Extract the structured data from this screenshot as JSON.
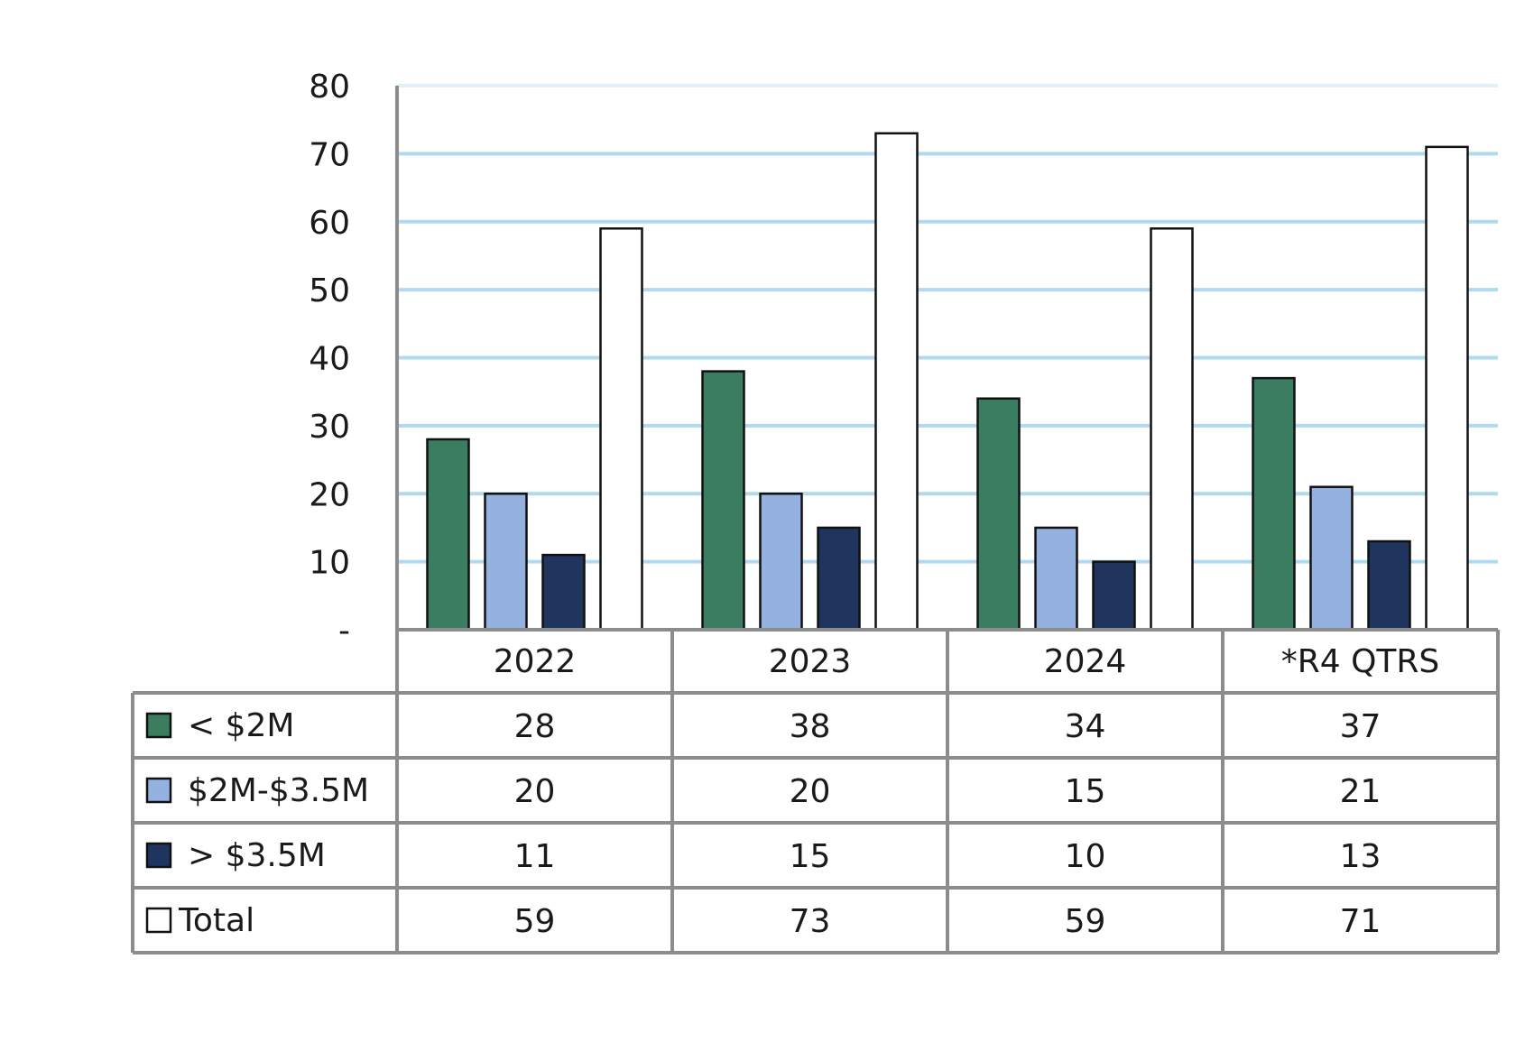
{
  "chart_data": {
    "type": "bar",
    "title": "",
    "xlabel": "",
    "ylabel": "",
    "categories": [
      "2022",
      "2023",
      "2024",
      "*R4 QTRS"
    ],
    "ylim": [
      0,
      80
    ],
    "y_ticks": [
      {
        "value": 0,
        "label": "-"
      },
      {
        "value": 10,
        "label": "10"
      },
      {
        "value": 20,
        "label": "20"
      },
      {
        "value": 30,
        "label": "30"
      },
      {
        "value": 40,
        "label": "40"
      },
      {
        "value": 50,
        "label": "50"
      },
      {
        "value": 60,
        "label": "60"
      },
      {
        "value": 70,
        "label": "70"
      },
      {
        "value": 80,
        "label": "80"
      }
    ],
    "grid": true,
    "legend": "data-table",
    "series": [
      {
        "name": "< $2M",
        "color": "#3a7d60",
        "values": [
          28,
          38,
          34,
          37
        ]
      },
      {
        "name": "$2M-$3.5M",
        "color": "#95b1df",
        "values": [
          20,
          20,
          15,
          21
        ]
      },
      {
        "name": "> $3.5M",
        "color": "#20355e",
        "values": [
          11,
          15,
          10,
          13
        ]
      },
      {
        "name": "Total",
        "color": "#ffffff",
        "values": [
          59,
          73,
          59,
          71
        ]
      }
    ]
  },
  "colors": {
    "gridline": "#a9d6ec",
    "axis": "#8c8c8c",
    "bar_outline": "#111111"
  }
}
